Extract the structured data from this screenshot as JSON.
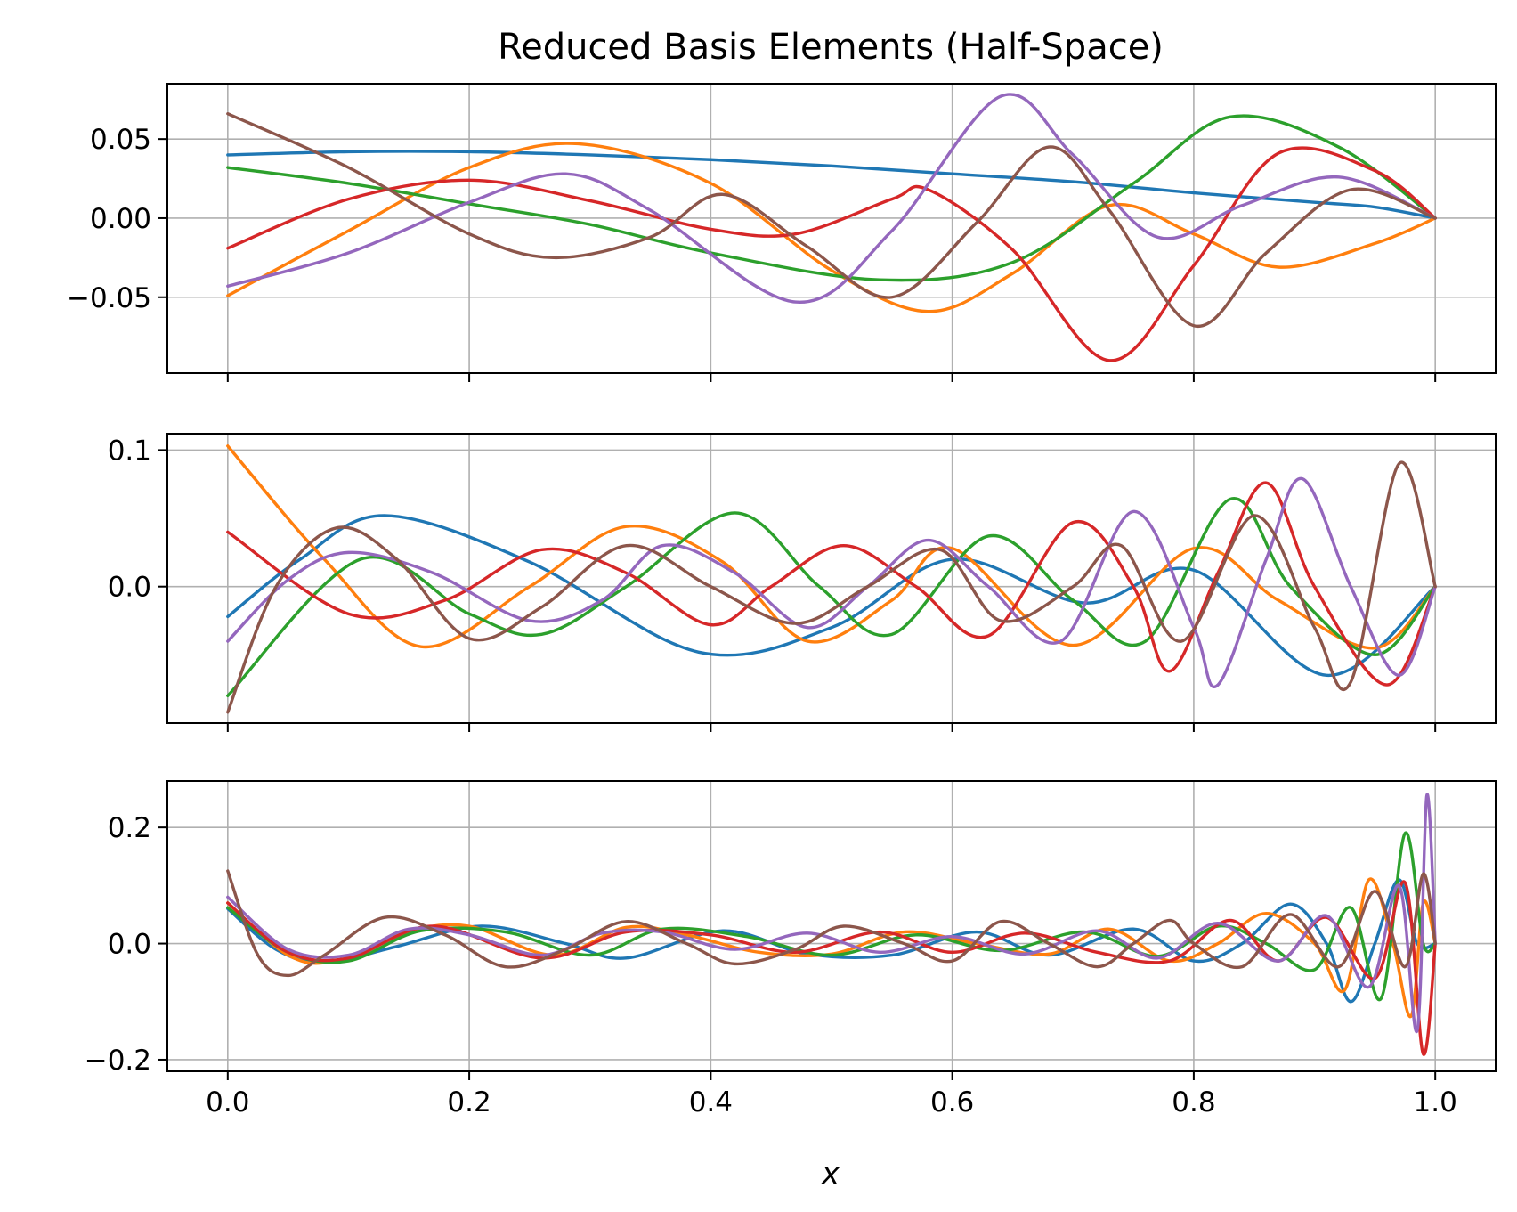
{
  "chart_data": {
    "type": "line",
    "title": "Reduced Basis Elements (Half-Space)",
    "xlabel": "x",
    "xlim": [
      -0.05,
      1.05
    ],
    "xticks": [
      0.0,
      0.2,
      0.4,
      0.6,
      0.8,
      1.0
    ],
    "xtick_labels": [
      "0.0",
      "0.2",
      "0.4",
      "0.6",
      "0.8",
      "1.0"
    ],
    "grid": true,
    "colors": [
      "#1f77b4",
      "#ff7f0e",
      "#2ca02c",
      "#d62728",
      "#9467bd",
      "#8c564b"
    ],
    "panels": [
      {
        "ylim": [
          -0.098,
          0.085
        ],
        "yticks": [
          -0.05,
          0.0,
          0.05
        ],
        "ytick_labels": [
          "−0.05",
          "0.00",
          "0.05"
        ],
        "series": [
          {
            "x": [
              0,
              0.1,
              0.2,
              0.3,
              0.4,
              0.5,
              0.6,
              0.7,
              0.8,
              0.9,
              0.95,
              1.0
            ],
            "y": [
              0.04,
              0.042,
              0.042,
              0.04,
              0.037,
              0.033,
              0.028,
              0.023,
              0.016,
              0.01,
              0.007,
              0.0
            ]
          },
          {
            "x": [
              0,
              0.1,
              0.2,
              0.29,
              0.4,
              0.5,
              0.58,
              0.65,
              0.73,
              0.8,
              0.87,
              0.95,
              1.0
            ],
            "y": [
              -0.049,
              -0.008,
              0.032,
              0.047,
              0.022,
              -0.033,
              -0.059,
              -0.035,
              0.008,
              -0.01,
              -0.031,
              -0.016,
              0.0
            ]
          },
          {
            "x": [
              0,
              0.1,
              0.2,
              0.3,
              0.4,
              0.54,
              0.65,
              0.75,
              0.83,
              0.92,
              1.0
            ],
            "y": [
              0.032,
              0.022,
              0.009,
              -0.004,
              -0.022,
              -0.039,
              -0.028,
              0.022,
              0.064,
              0.045,
              0.0
            ]
          },
          {
            "x": [
              0,
              0.1,
              0.2,
              0.3,
              0.4,
              0.47,
              0.55,
              0.58,
              0.65,
              0.73,
              0.8,
              0.87,
              0.95,
              1.0
            ],
            "y": [
              -0.019,
              0.012,
              0.024,
              0.011,
              -0.007,
              -0.01,
              0.012,
              0.018,
              -0.02,
              -0.09,
              -0.03,
              0.041,
              0.03,
              0.0
            ]
          },
          {
            "x": [
              0,
              0.1,
              0.2,
              0.28,
              0.35,
              0.47,
              0.55,
              0.64,
              0.7,
              0.77,
              0.84,
              0.92,
              1.0
            ],
            "y": [
              -0.043,
              -0.022,
              0.01,
              0.028,
              0.005,
              -0.053,
              -0.008,
              0.077,
              0.04,
              -0.012,
              0.008,
              0.026,
              0.0
            ]
          },
          {
            "x": [
              0,
              0.1,
              0.2,
              0.27,
              0.35,
              0.41,
              0.48,
              0.55,
              0.62,
              0.68,
              0.73,
              0.8,
              0.86,
              0.93,
              1.0
            ],
            "y": [
              0.066,
              0.032,
              -0.01,
              -0.025,
              -0.012,
              0.015,
              -0.018,
              -0.05,
              -0.003,
              0.045,
              0.005,
              -0.068,
              -0.022,
              0.018,
              0.0
            ]
          }
        ]
      },
      {
        "ylim": [
          -0.1,
          0.112
        ],
        "yticks": [
          0.0,
          0.1
        ],
        "ytick_labels": [
          "0.0",
          "0.1"
        ],
        "series": [
          {
            "x": [
              0,
              0.06,
              0.13,
              0.25,
              0.39,
              0.5,
              0.6,
              0.71,
              0.8,
              0.91,
              1.0
            ],
            "y": [
              -0.022,
              0.02,
              0.052,
              0.018,
              -0.048,
              -0.03,
              0.02,
              -0.012,
              0.012,
              -0.065,
              0.0
            ]
          },
          {
            "x": [
              0,
              0.08,
              0.16,
              0.25,
              0.33,
              0.41,
              0.48,
              0.55,
              0.6,
              0.7,
              0.8,
              0.87,
              0.95,
              1.0
            ],
            "y": [
              0.103,
              0.02,
              -0.044,
              0.0,
              0.044,
              0.018,
              -0.04,
              -0.01,
              0.028,
              -0.043,
              0.028,
              -0.01,
              -0.045,
              0.0
            ]
          },
          {
            "x": [
              0,
              0.11,
              0.2,
              0.26,
              0.33,
              0.42,
              0.49,
              0.55,
              0.63,
              0.7,
              0.76,
              0.83,
              0.88,
              0.95,
              1.0
            ],
            "y": [
              -0.08,
              0.02,
              -0.02,
              -0.035,
              0.0,
              0.054,
              0.0,
              -0.035,
              0.037,
              -0.01,
              -0.04,
              0.064,
              0.0,
              -0.05,
              0.0
            ]
          },
          {
            "x": [
              0,
              0.1,
              0.18,
              0.26,
              0.33,
              0.4,
              0.45,
              0.51,
              0.57,
              0.63,
              0.7,
              0.75,
              0.78,
              0.82,
              0.86,
              0.9,
              0.96,
              1.0
            ],
            "y": [
              0.04,
              -0.02,
              -0.01,
              0.027,
              0.01,
              -0.028,
              0.0,
              0.03,
              0.0,
              -0.036,
              0.047,
              0.0,
              -0.062,
              0.01,
              0.076,
              0.0,
              -0.072,
              0.0
            ]
          },
          {
            "x": [
              0,
              0.05,
              0.1,
              0.17,
              0.25,
              0.31,
              0.36,
              0.42,
              0.48,
              0.53,
              0.58,
              0.63,
              0.69,
              0.75,
              0.8,
              0.82,
              0.86,
              0.89,
              0.93,
              0.97,
              1.0
            ],
            "y": [
              -0.04,
              0.005,
              0.025,
              0.01,
              -0.025,
              -0.01,
              0.03,
              0.01,
              -0.03,
              0.0,
              0.034,
              0.0,
              -0.04,
              0.055,
              -0.03,
              -0.072,
              0.02,
              0.079,
              0.0,
              -0.065,
              0.0
            ]
          },
          {
            "x": [
              0,
              0.04,
              0.09,
              0.14,
              0.2,
              0.26,
              0.33,
              0.4,
              0.47,
              0.53,
              0.59,
              0.64,
              0.7,
              0.74,
              0.79,
              0.85,
              0.9,
              0.93,
              0.97,
              1.0
            ],
            "y": [
              -0.092,
              0.0,
              0.043,
              0.02,
              -0.038,
              -0.015,
              0.03,
              0.0,
              -0.027,
              0.0,
              0.027,
              -0.025,
              0.0,
              0.03,
              -0.04,
              0.052,
              -0.03,
              -0.07,
              0.09,
              0.0
            ]
          }
        ]
      },
      {
        "ylim": [
          -0.22,
          0.28
        ],
        "yticks": [
          -0.2,
          0.0,
          0.2
        ],
        "ytick_labels": [
          "−0.2",
          "0.0",
          "0.2"
        ],
        "series": [
          {
            "x": [
              0,
              0.04,
              0.08,
              0.14,
              0.21,
              0.28,
              0.33,
              0.41,
              0.48,
              0.55,
              0.62,
              0.68,
              0.75,
              0.8,
              0.84,
              0.88,
              0.91,
              0.93,
              0.95,
              0.97,
              0.985,
              1.0
            ],
            "y": [
              0.06,
              -0.01,
              -0.033,
              -0.005,
              0.03,
              0.0,
              -0.025,
              0.022,
              -0.018,
              -0.02,
              0.02,
              -0.02,
              0.025,
              -0.03,
              0.0,
              0.068,
              0.0,
              -0.1,
              0.0,
              0.11,
              0.0,
              0.0
            ]
          },
          {
            "x": [
              0,
              0.05,
              0.09,
              0.15,
              0.2,
              0.27,
              0.33,
              0.38,
              0.44,
              0.5,
              0.56,
              0.62,
              0.68,
              0.73,
              0.78,
              0.82,
              0.86,
              0.9,
              0.925,
              0.945,
              0.965,
              0.98,
              0.99,
              1.0
            ],
            "y": [
              0.07,
              -0.02,
              -0.03,
              0.02,
              0.03,
              -0.02,
              0.028,
              0.015,
              -0.015,
              -0.018,
              0.02,
              0.0,
              -0.018,
              0.025,
              -0.03,
              0.0,
              0.052,
              0.0,
              -0.08,
              0.11,
              0.0,
              -0.125,
              0.07,
              0.0
            ]
          },
          {
            "x": [
              0,
              0.05,
              0.1,
              0.16,
              0.23,
              0.3,
              0.36,
              0.43,
              0.5,
              0.57,
              0.64,
              0.71,
              0.77,
              0.82,
              0.86,
              0.9,
              0.93,
              0.955,
              0.975,
              0.99,
              1.0
            ],
            "y": [
              0.062,
              -0.015,
              -0.03,
              0.022,
              0.02,
              -0.02,
              0.025,
              0.012,
              -0.02,
              0.015,
              -0.012,
              0.02,
              -0.022,
              0.03,
              0.0,
              -0.045,
              0.062,
              -0.095,
              0.19,
              0.0,
              0.0
            ]
          },
          {
            "x": [
              0,
              0.05,
              0.1,
              0.17,
              0.26,
              0.33,
              0.4,
              0.47,
              0.54,
              0.6,
              0.66,
              0.72,
              0.78,
              0.83,
              0.87,
              0.91,
              0.95,
              0.975,
              0.99,
              1.0
            ],
            "y": [
              0.07,
              -0.015,
              -0.025,
              0.03,
              -0.025,
              0.02,
              0.015,
              -0.015,
              0.02,
              -0.015,
              0.018,
              -0.015,
              -0.03,
              0.04,
              -0.03,
              0.045,
              -0.06,
              0.105,
              -0.19,
              0.0
            ]
          },
          {
            "x": [
              0,
              0.05,
              0.1,
              0.15,
              0.2,
              0.26,
              0.31,
              0.36,
              0.42,
              0.48,
              0.54,
              0.6,
              0.66,
              0.72,
              0.77,
              0.82,
              0.87,
              0.91,
              0.945,
              0.97,
              0.985,
              0.993,
              1.0
            ],
            "y": [
              0.08,
              -0.01,
              -0.02,
              0.025,
              0.015,
              -0.02,
              0.018,
              0.02,
              -0.01,
              0.018,
              -0.015,
              0.012,
              -0.018,
              0.022,
              -0.025,
              0.035,
              -0.03,
              0.048,
              -0.075,
              0.1,
              -0.15,
              0.255,
              0.0
            ]
          },
          {
            "x": [
              0,
              0.025,
              0.05,
              0.08,
              0.13,
              0.18,
              0.23,
              0.28,
              0.33,
              0.38,
              0.42,
              0.47,
              0.51,
              0.56,
              0.6,
              0.64,
              0.68,
              0.72,
              0.75,
              0.78,
              0.8,
              0.84,
              0.88,
              0.92,
              0.95,
              0.975,
              0.99,
              1.0
            ],
            "y": [
              0.125,
              -0.02,
              -0.055,
              -0.02,
              0.045,
              0.015,
              -0.04,
              -0.01,
              0.038,
              0.0,
              -0.035,
              -0.01,
              0.03,
              0.0,
              -0.03,
              0.038,
              0.0,
              -0.04,
              0.0,
              0.04,
              0.0,
              -0.04,
              0.05,
              -0.04,
              0.09,
              -0.04,
              0.12,
              0.0
            ]
          }
        ]
      }
    ]
  }
}
